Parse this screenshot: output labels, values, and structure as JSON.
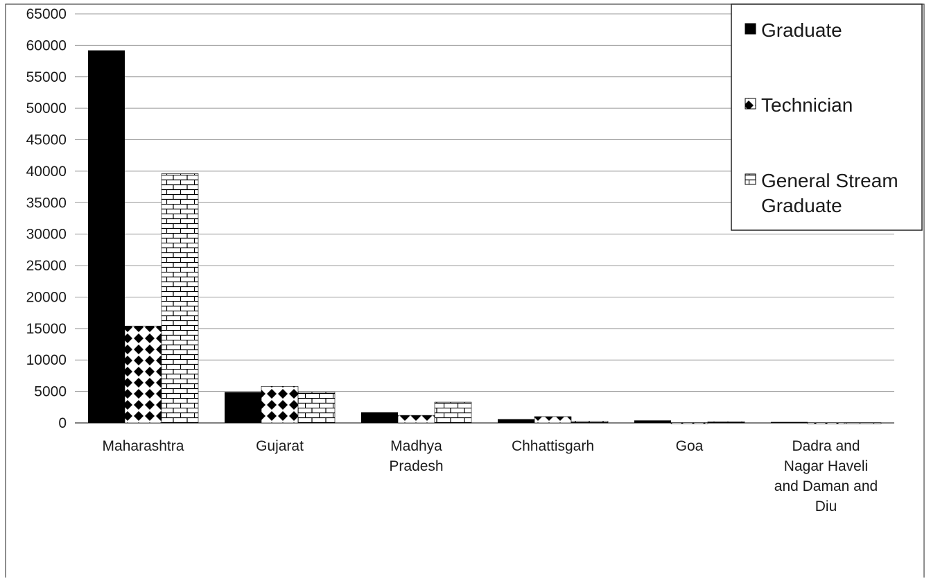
{
  "chart_data": {
    "type": "bar",
    "title": "",
    "xlabel": "",
    "ylabel": "",
    "ylim": [
      0,
      65000
    ],
    "yticks": [
      0,
      5000,
      10000,
      15000,
      20000,
      25000,
      30000,
      35000,
      40000,
      45000,
      50000,
      55000,
      60000,
      65000
    ],
    "grid": true,
    "legend_position": "top-right",
    "categories": [
      [
        "Maharashtra"
      ],
      [
        "Gujarat"
      ],
      [
        "Madhya",
        "Pradesh"
      ],
      [
        "Chhattisgarh"
      ],
      [
        "Goa"
      ],
      [
        "Dadra and",
        "Nagar Haveli",
        "and Daman and",
        "Diu"
      ]
    ],
    "series": [
      {
        "name": [
          "Graduate"
        ],
        "pattern": "solid",
        "values": [
          59200,
          4900,
          1700,
          600,
          400,
          150
        ]
      },
      {
        "name": [
          "Technician"
        ],
        "pattern": "diamonds",
        "values": [
          15400,
          5800,
          1200,
          1000,
          50,
          30
        ]
      },
      {
        "name": [
          "General Stream",
          "Graduate"
        ],
        "pattern": "bricks",
        "values": [
          39600,
          4900,
          3300,
          300,
          200,
          40
        ]
      }
    ],
    "colors": {
      "bar": "#000000",
      "grid": "#999999",
      "axis": "#333333",
      "border": "#444444"
    }
  }
}
